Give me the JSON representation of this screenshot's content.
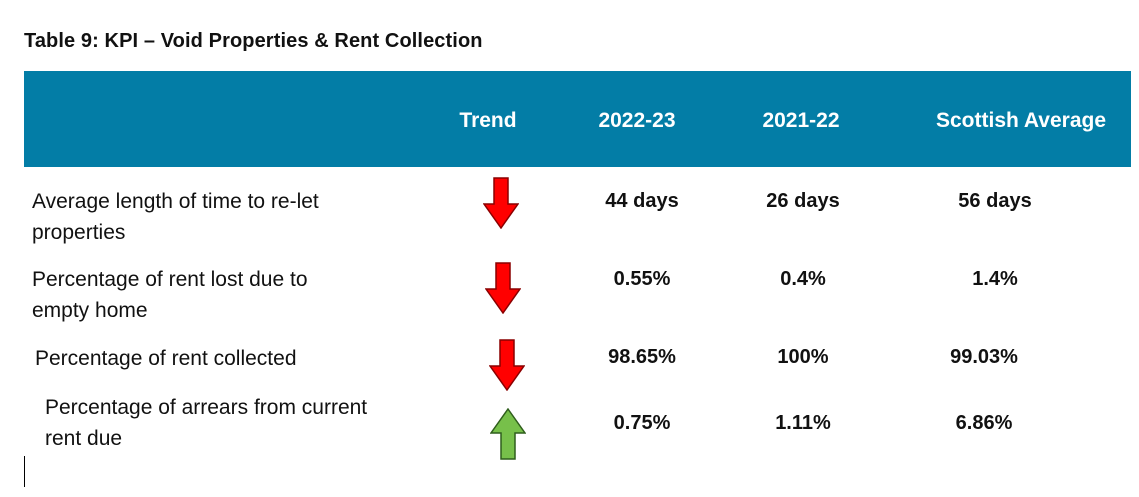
{
  "title": "Table 9: KPI – Void Properties & Rent Collection",
  "header": {
    "trend": "Trend",
    "col1": "2022-23",
    "col2": "2021-22",
    "col3": "Scottish Average"
  },
  "colors": {
    "header_bg": "#037da6",
    "down_arrow": "#ff0000",
    "up_arrow": "#77c04a"
  },
  "rows": [
    {
      "label_line1": "Average length of time to re-let",
      "label_line2": "properties",
      "trend": "down",
      "trend_icon": "down-arrow-icon",
      "v2022": "44 days",
      "v2021": "26 days",
      "scot": "56 days"
    },
    {
      "label_line1": "Percentage of rent lost due to",
      "label_line2": "empty home",
      "trend": "down",
      "trend_icon": "down-arrow-icon",
      "v2022": "0.55%",
      "v2021": "0.4%",
      "scot": "1.4%"
    },
    {
      "label_line1": "Percentage of rent collected",
      "label_line2": "",
      "trend": "down",
      "trend_icon": "down-arrow-icon",
      "v2022": "98.65%",
      "v2021": "100%",
      "scot": "99.03%"
    },
    {
      "label_line1": "Percentage of arrears from current",
      "label_line2": "rent due",
      "trend": "up",
      "trend_icon": "up-arrow-icon",
      "v2022": "0.75%",
      "v2021": "1.11%",
      "scot": "6.86%"
    }
  ]
}
